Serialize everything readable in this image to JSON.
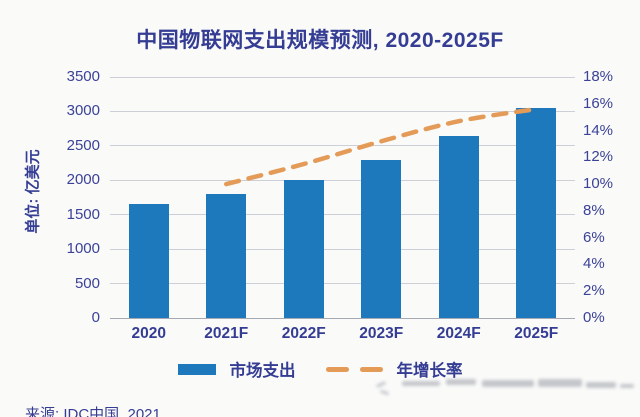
{
  "title": "中国物联网支出规模预测, 2020-2025F",
  "y_axis_label": "单位: 亿美元",
  "source_note": "来源: IDC中国, 2021",
  "legend": {
    "bar_label": "市场支出",
    "line_label": "年增长率"
  },
  "colors": {
    "background": "#FAFAF9",
    "bar": "#1E78BC",
    "line": "#E49B58",
    "title_text": "#343D93",
    "axis_text": "#3B4298",
    "gridline": "#CDCFD8",
    "axis_line": "#A5A9B5"
  },
  "chart_data": {
    "type": "bar",
    "subtype": "dual-axis combo: bars (left axis) + dashed trend line (right axis)",
    "title": "中国物联网支出规模预测, 2020-2025F",
    "categories": [
      "2020",
      "2021F",
      "2022F",
      "2023F",
      "2024F",
      "2025F"
    ],
    "series": [
      {
        "name": "市场支出",
        "type": "bar",
        "axis": "left",
        "values": [
          1650,
          1800,
          2000,
          2300,
          2650,
          3050
        ]
      },
      {
        "name": "年增长率",
        "type": "dashed-line",
        "axis": "right",
        "unit": "%",
        "values": [
          null,
          10,
          11.5,
          13.2,
          14.7,
          15.6
        ]
      }
    ],
    "left_axis": {
      "label": "单位: 亿美元",
      "min": 0,
      "max": 3500,
      "step": 500,
      "tick_labels": [
        "3500",
        "3000",
        "2500",
        "2000",
        "1500",
        "1000",
        "500",
        "0"
      ]
    },
    "right_axis": {
      "min": 0,
      "max": 18,
      "step": 2,
      "tick_labels": [
        "18%",
        "16%",
        "14%",
        "12%",
        "10%",
        "8%",
        "6%",
        "4%",
        "2%",
        "0%"
      ]
    },
    "grid": true,
    "legend_position": "bottom",
    "source": "来源: IDC中国, 2021"
  }
}
